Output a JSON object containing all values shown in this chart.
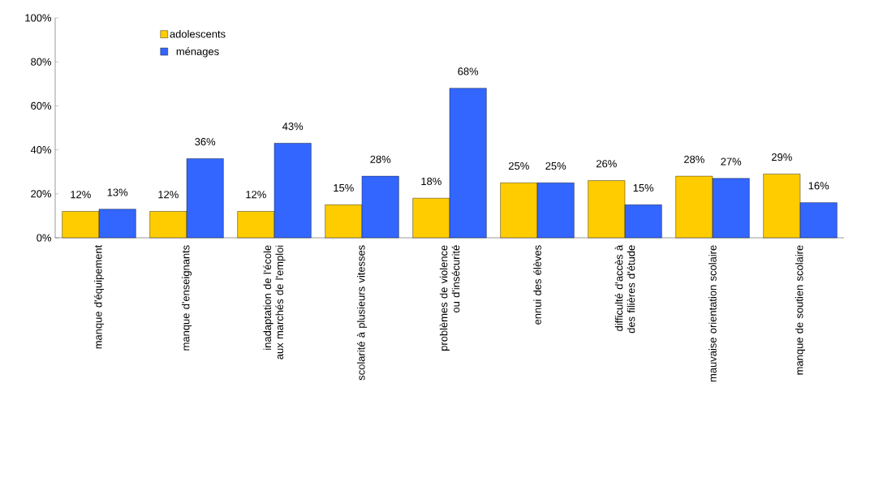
{
  "chart_data": {
    "type": "bar",
    "categories": [
      "manque d'équipement",
      "manque d'enseignants",
      "inadaptation de l'école aux marchés de l'emploi",
      "scolarité à plusieurs vitesses",
      "problèmes de violence ou d'insécurité",
      "ennui des élèves",
      "difficulté d'accès à des filières d'étude",
      "mauvaise orientation scolaire",
      "manque de soutien scolaire"
    ],
    "series": [
      {
        "name": "adolescents",
        "color": "#ffcc00",
        "values": [
          12,
          12,
          12,
          15,
          18,
          25,
          26,
          28,
          29
        ],
        "value_labels": [
          "12%",
          "12%",
          "12%",
          "15%",
          "18%",
          "25%",
          "26%",
          "28%",
          "29%"
        ]
      },
      {
        "name": "ménages",
        "color": "#3366ff",
        "values": [
          13,
          36,
          43,
          28,
          68,
          25,
          15,
          27,
          16
        ],
        "value_labels": [
          "13%",
          "36%",
          "43%",
          "28%",
          "68%",
          "25%",
          "15%",
          "27%",
          "16%"
        ]
      }
    ],
    "ylim": [
      0,
      100
    ],
    "yticks": [
      {
        "value": 0,
        "label": "0%"
      },
      {
        "value": 20,
        "label": "20%"
      },
      {
        "value": 40,
        "label": "40%"
      },
      {
        "value": 60,
        "label": "60%"
      },
      {
        "value": 80,
        "label": "80%"
      },
      {
        "value": 100,
        "label": "100%"
      }
    ],
    "grid": false,
    "legend": "top left"
  }
}
